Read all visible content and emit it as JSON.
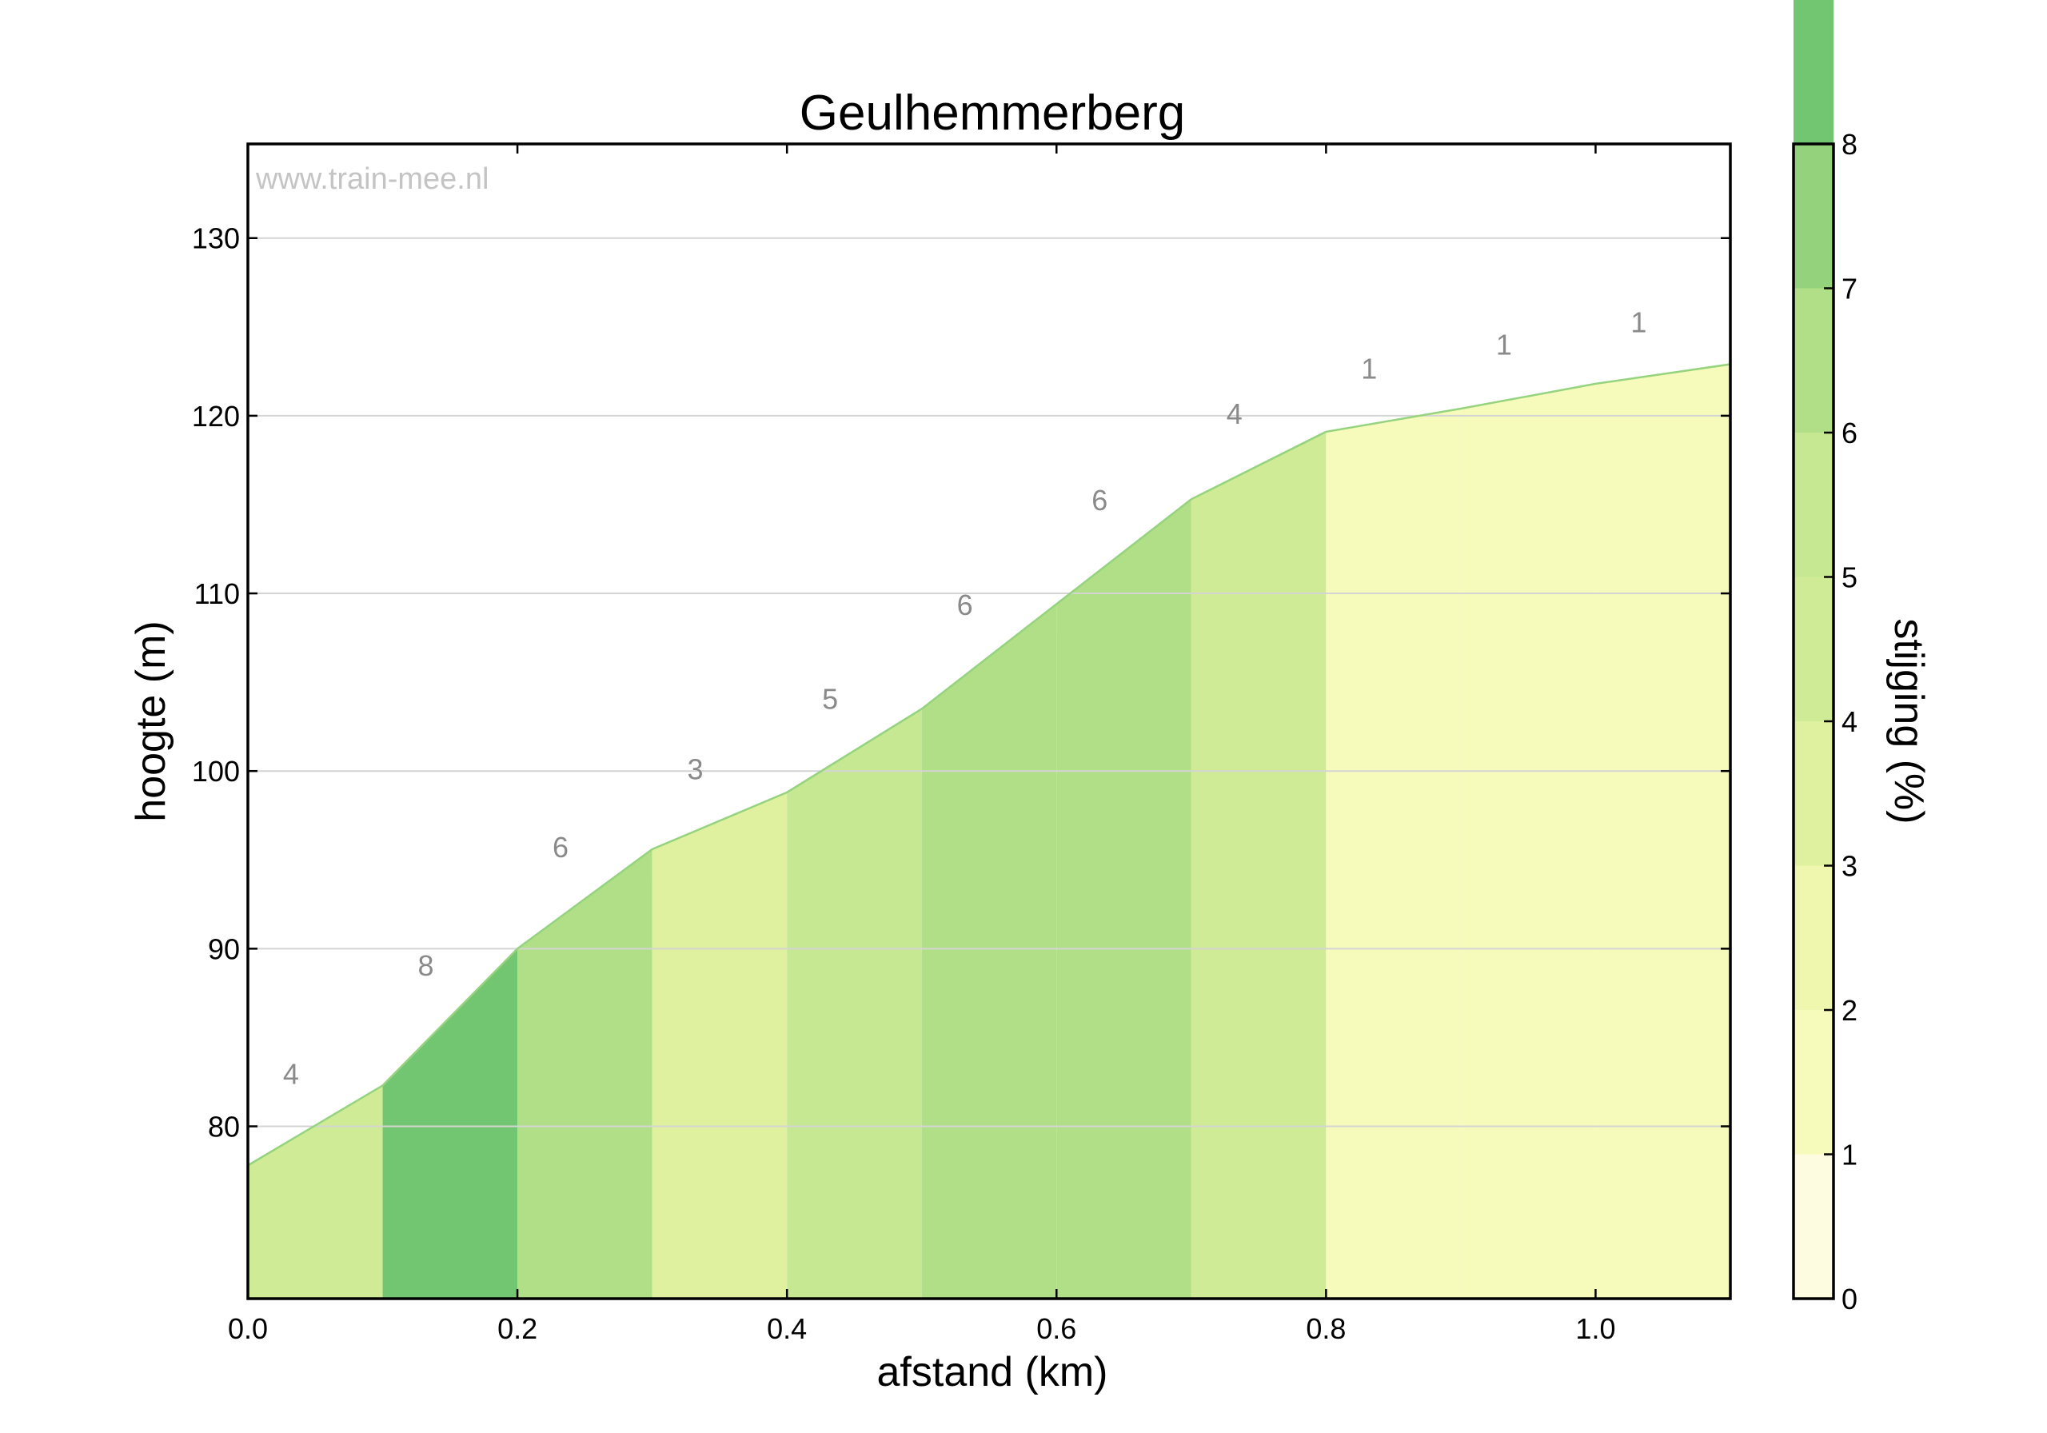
{
  "chart_data": {
    "type": "area",
    "title": "Geulhemmerberg",
    "xlabel": "afstand (km)",
    "ylabel": "hoogte (m)",
    "watermark": "www.train-mee.nl",
    "xlim": [
      0.0,
      1.1
    ],
    "ylim": [
      70.3,
      135.3
    ],
    "grid": true,
    "x_ticks": [
      0.0,
      0.2,
      0.4,
      0.6,
      0.8,
      1.0
    ],
    "x_tick_labels": [
      "0.0",
      "0.2",
      "0.4",
      "0.6",
      "0.8",
      "1.0"
    ],
    "y_ticks": [
      80,
      90,
      100,
      110,
      120,
      130
    ],
    "y_tick_labels": [
      "80",
      "90",
      "100",
      "110",
      "120",
      "130"
    ],
    "x": [
      0.0,
      0.1,
      0.2,
      0.3,
      0.4,
      0.5,
      0.6,
      0.7,
      0.8,
      0.9,
      1.0,
      1.1
    ],
    "elevation": [
      77.8,
      82.3,
      90.0,
      95.6,
      98.8,
      103.5,
      109.4,
      115.3,
      119.1,
      120.4,
      121.8,
      122.9
    ],
    "segment_gradients": [
      4,
      8,
      6,
      3,
      5,
      6,
      6,
      4,
      1,
      1,
      1
    ],
    "segment_labels": [
      "4",
      "8",
      "6",
      "3",
      "5",
      "6",
      "6",
      "4",
      "1",
      "1",
      "1"
    ],
    "colorbar": {
      "label": "stijging (%)",
      "range": [
        0,
        8
      ],
      "ticks": [
        0,
        1,
        2,
        3,
        4,
        5,
        6,
        7,
        8
      ],
      "tick_labels": [
        "0",
        "1",
        "2",
        "3",
        "4",
        "5",
        "6",
        "7",
        "8"
      ],
      "colors": [
        "#fefce0",
        "#f6fbbc",
        "#eef7ad",
        "#dff19e",
        "#cfeb96",
        "#c6e892",
        "#b0df87",
        "#94d37c",
        "#73c671"
      ]
    }
  }
}
